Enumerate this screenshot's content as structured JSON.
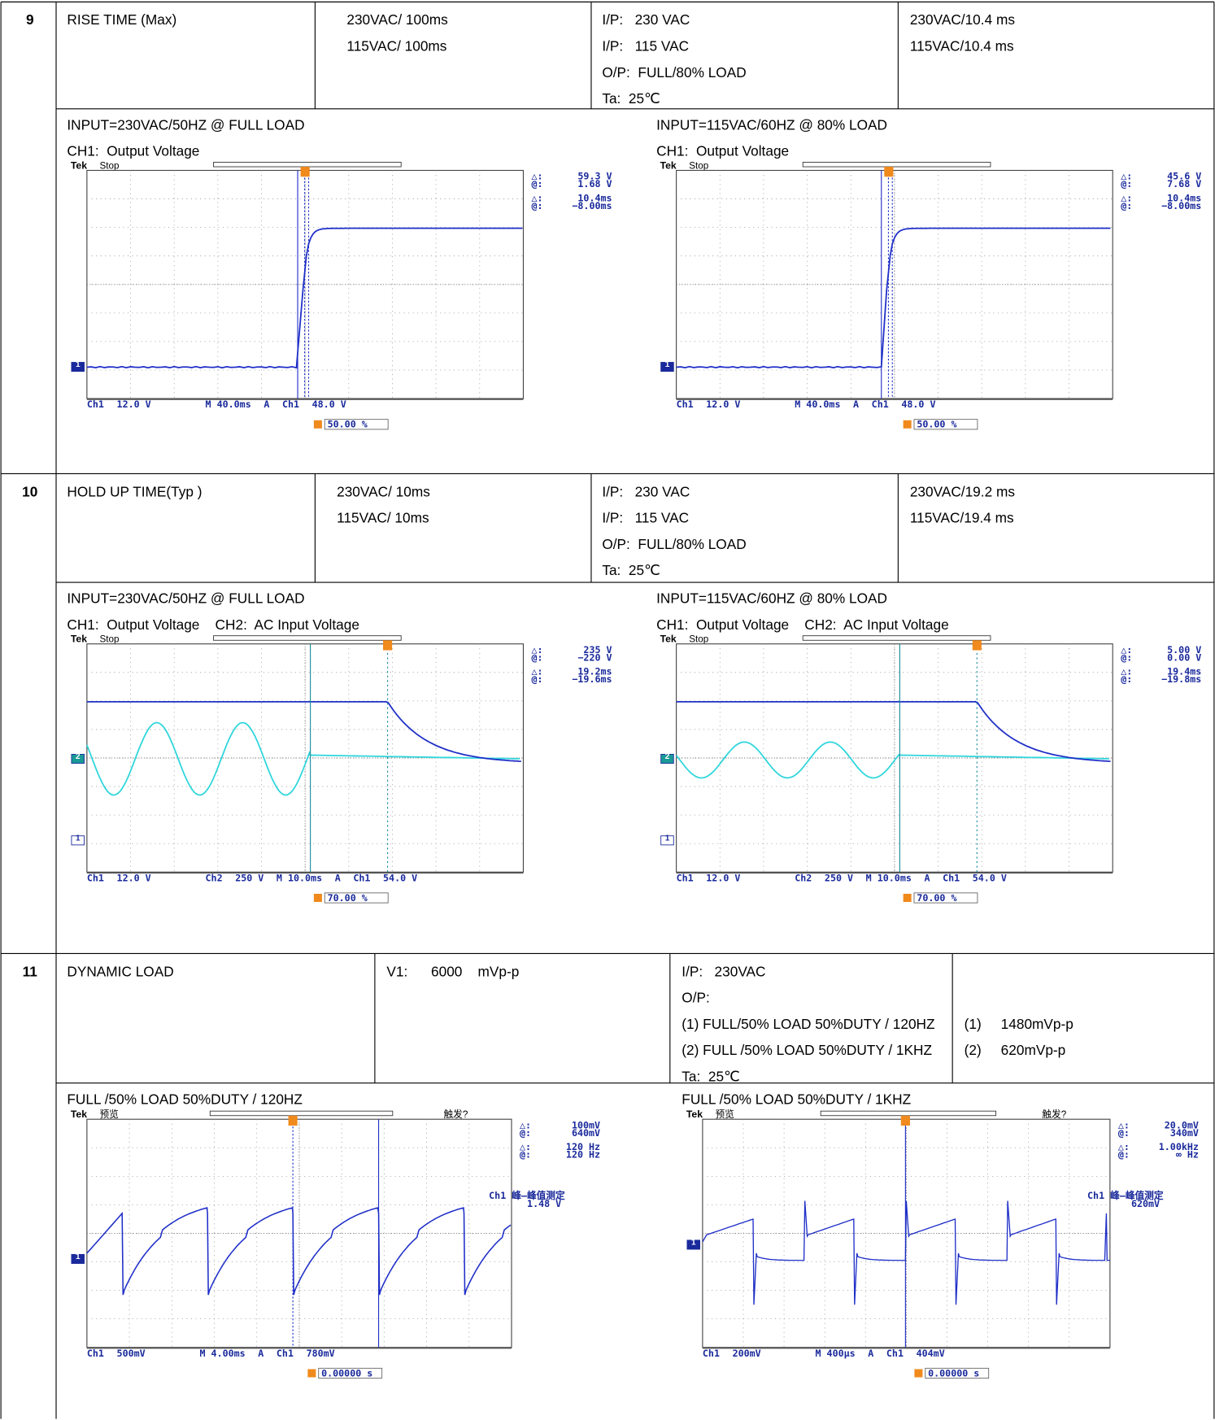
{
  "rows": [
    {
      "no": "9",
      "item": "RISE TIME (Max)",
      "spec": [
        "230VAC/ 100ms",
        "115VAC/ 100ms"
      ],
      "condition": [
        "I/P:   230 VAC",
        "I/P:   115 VAC",
        "O/P:  FULL/80% LOAD",
        "Ta:  25℃"
      ],
      "result": [
        "230VAC/10.4 ms",
        "115VAC/10.4 ms"
      ],
      "scopes": [
        {
          "caption": [
            "INPUT=230VAC/50HZ @ FULL LOAD",
            "CH1:  Output Voltage"
          ],
          "screen": {
            "brand": "Tek",
            "state": "Stop",
            "readout": [
              [
                "△:",
                "59.3 V"
              ],
              [
                "@:",
                "1.68 V"
              ],
              [
                "△:",
                "10.4ms"
              ],
              [
                "@:",
                "−8.00ms"
              ]
            ],
            "markers": [
              "1"
            ],
            "bottom": [
              "Ch1",
              "12.0 V",
              "M 40.0ms",
              "A",
              "Ch1",
              "48.0 V"
            ],
            "trigger": "50.00 %"
          }
        },
        {
          "caption": [
            "INPUT=115VAC/60HZ @ 80% LOAD",
            "CH1:  Output Voltage"
          ],
          "screen": {
            "brand": "Tek",
            "state": "Stop",
            "readout": [
              [
                "△:",
                "45.6 V"
              ],
              [
                "@:",
                "7.68 V"
              ],
              [
                "△:",
                "10.4ms"
              ],
              [
                "@:",
                "−8.00ms"
              ]
            ],
            "markers": [
              "1"
            ],
            "bottom": [
              "Ch1",
              "12.0 V",
              "M 40.0ms",
              "A",
              "Ch1",
              "48.0 V"
            ],
            "trigger": "50.00 %"
          }
        }
      ]
    },
    {
      "no": "10",
      "item": "HOLD UP TIME(Typ )",
      "spec": [
        "230VAC/ 10ms",
        "115VAC/ 10ms"
      ],
      "condition": [
        "I/P:   230 VAC",
        "I/P:   115 VAC",
        "O/P:  FULL/80% LOAD",
        "Ta:  25℃"
      ],
      "result": [
        "230VAC/19.2 ms",
        "115VAC/19.4 ms"
      ],
      "scopes": [
        {
          "caption": [
            "INPUT=230VAC/50HZ @ FULL LOAD",
            "CH1:  Output Voltage    CH2:  AC Input Voltage"
          ],
          "screen": {
            "brand": "Tek",
            "state": "Stop",
            "readout": [
              [
                "△:",
                "235 V"
              ],
              [
                "@:",
                "−220 V"
              ],
              [
                "△:",
                "19.2ms"
              ],
              [
                "@:",
                "−19.6ms"
              ]
            ],
            "markers": [
              "2",
              "1"
            ],
            "bottom": [
              "Ch1",
              "12.0 V",
              "Ch2",
              "250 V",
              "M 10.0ms",
              "A",
              "Ch1",
              "54.0 V"
            ],
            "trigger": "70.00 %"
          }
        },
        {
          "caption": [
            "INPUT=115VAC/60HZ @ 80% LOAD",
            "CH1:  Output Voltage    CH2:  AC Input Voltage"
          ],
          "screen": {
            "brand": "Tek",
            "state": "Stop",
            "readout": [
              [
                "△:",
                "5.00 V"
              ],
              [
                "@:",
                "0.00 V"
              ],
              [
                "△:",
                "19.4ms"
              ],
              [
                "@:",
                "−19.8ms"
              ]
            ],
            "markers": [
              "2",
              "1"
            ],
            "bottom": [
              "Ch1",
              "12.0 V",
              "Ch2",
              "250 V",
              "M 10.0ms",
              "A",
              "Ch1",
              "54.0 V"
            ],
            "trigger": "70.00 %"
          }
        }
      ]
    },
    {
      "no": "11",
      "item": "DYNAMIC LOAD",
      "spec": [
        "V1:      6000    mVp-p"
      ],
      "condition": [
        "I/P:   230VAC",
        "O/P:",
        "(1) FULL/50% LOAD 50%DUTY / 120HZ",
        "(2) FULL /50% LOAD 50%DUTY / 1KHZ",
        "Ta:  25℃"
      ],
      "result": [
        "(1)     1480mVp-p",
        "(2)     620mVp-p"
      ],
      "scopes": [
        {
          "caption": [
            "FULL /50% LOAD 50%DUTY / 120HZ"
          ],
          "screen": {
            "brand": "Tek",
            "state": "预览",
            "status": "触发?",
            "readout": [
              [
                "△:",
                "100mV"
              ],
              [
                "@:",
                "640mV"
              ],
              [
                "△:",
                "120 Hz"
              ],
              [
                "@:",
                "120 Hz"
              ]
            ],
            "peak": [
              "Ch1 峰—峰值测定",
              "1.48 V"
            ],
            "markers": [
              "1"
            ],
            "bottom": [
              "Ch1",
              "500mV",
              "M 4.00ms",
              "A",
              "Ch1",
              "780mV"
            ],
            "trigger": "0.00000 s"
          }
        },
        {
          "caption": [
            "FULL /50% LOAD 50%DUTY / 1KHZ"
          ],
          "screen": {
            "brand": "Tek",
            "state": "预览",
            "status": "触发?",
            "readout": [
              [
                "△:",
                "20.0mV"
              ],
              [
                "@:",
                "340mV"
              ],
              [
                "△:",
                "1.00kHz"
              ],
              [
                "@:",
                "∞ Hz"
              ]
            ],
            "peak": [
              "Ch1 峰—峰值测定",
              "620mV"
            ],
            "markers": [
              "1"
            ],
            "bottom": [
              "Ch1",
              "200mV",
              "M 400μs",
              "A",
              "Ch1",
              "404mV"
            ],
            "trigger": "0.00000 s"
          }
        }
      ]
    }
  ]
}
